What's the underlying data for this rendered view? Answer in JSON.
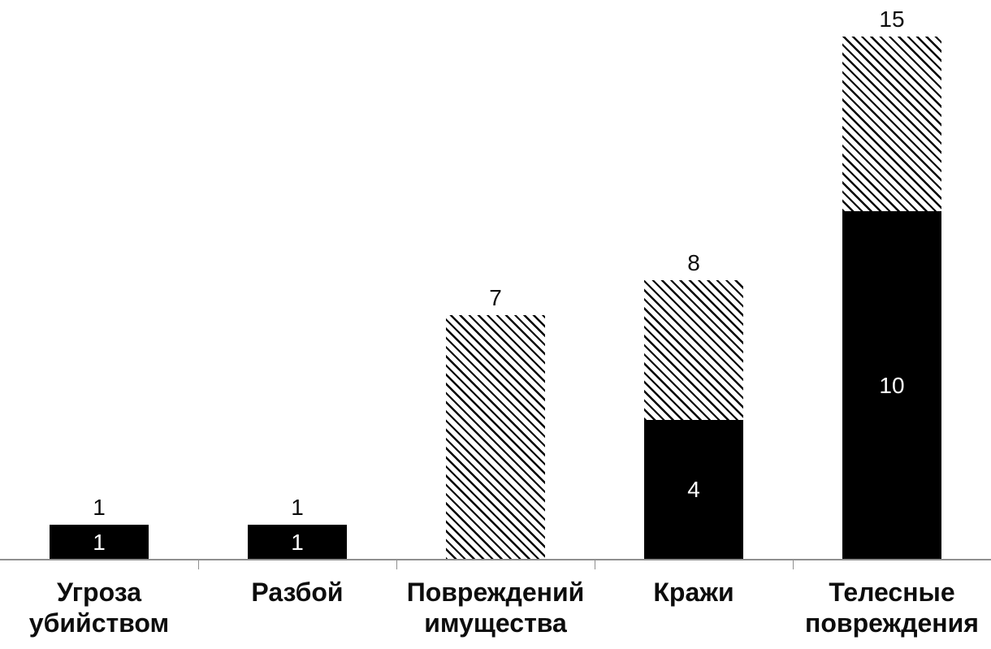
{
  "chart_data": {
    "type": "bar",
    "stacked": true,
    "title": "",
    "xlabel": "",
    "ylabel": "",
    "ylim": [
      0,
      15
    ],
    "grid": false,
    "legend": "none",
    "categories": [
      "Угроза убийством",
      "Разбой",
      "Повреждений имущества",
      "Кражи",
      "Телесные повреждения"
    ],
    "series": [
      {
        "name": "solid-black-segment",
        "fill": "solid",
        "values": [
          1,
          1,
          0,
          4,
          10
        ]
      },
      {
        "name": "diagonal-hatch-segment",
        "fill": "hatch-down-diagonal",
        "values": [
          0,
          0,
          7,
          4,
          5
        ]
      }
    ],
    "totals": [
      1,
      1,
      7,
      8,
      15
    ],
    "inner_labels": [
      "1",
      "1",
      "",
      "4",
      "10"
    ]
  },
  "colors": {
    "background": "#ffffff",
    "bar_solid": "#000000",
    "hatch_line": "#000000",
    "hatch_background": "#ffffff",
    "axis": "#8f8f8f",
    "total_label": "#0d0d0d",
    "inner_label": "#ffffff",
    "category_label": "#0d0d0d"
  }
}
